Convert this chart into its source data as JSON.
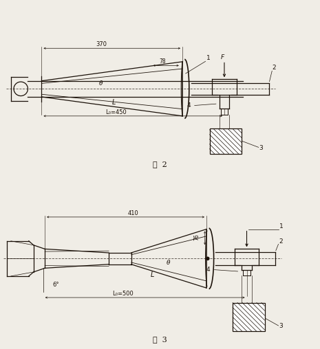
{
  "fig_width": 4.65,
  "fig_height": 5.08,
  "dpi": 100,
  "bg_color": "#f0ede6",
  "line_color": "#1a1008",
  "fig2_label": "图  2",
  "fig3_label": "图  3",
  "fig2": {
    "dim_370": "370",
    "dim_78": "78",
    "dim_L": "L",
    "dim_Lo": "L₀=450",
    "dim_theta": "θ",
    "label_F": "F",
    "label_1": "1",
    "label_2": "2",
    "label_3": "3",
    "label_4": "4"
  },
  "fig3": {
    "dim_410": "410",
    "dim_76": "76",
    "dim_6deg": "6°",
    "dim_L": "L",
    "dim_Lo": "L₀=500",
    "dim_theta": "θ",
    "label_1": "1",
    "label_2": "2",
    "label_3": "3",
    "label_4": "4"
  }
}
